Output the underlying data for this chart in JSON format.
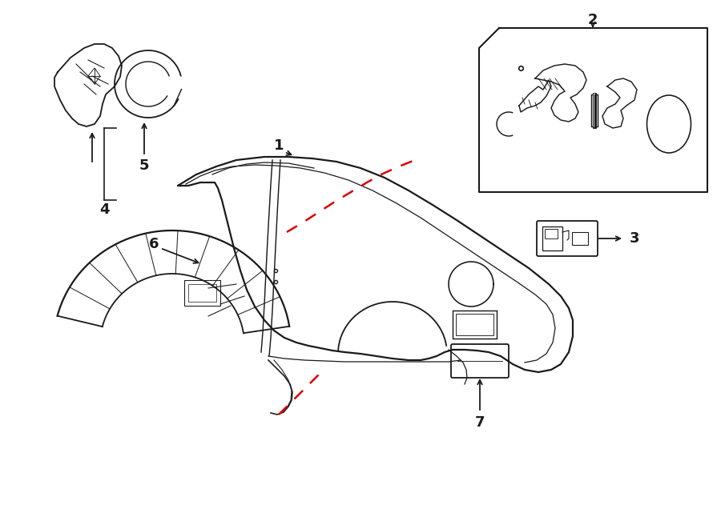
{
  "bg_color": "#ffffff",
  "line_color": "#1a1a1a",
  "dashed_color": "#dd0000",
  "fig_width": 9.0,
  "fig_height": 6.61,
  "label_fontsize": 13,
  "line_width": 1.3
}
